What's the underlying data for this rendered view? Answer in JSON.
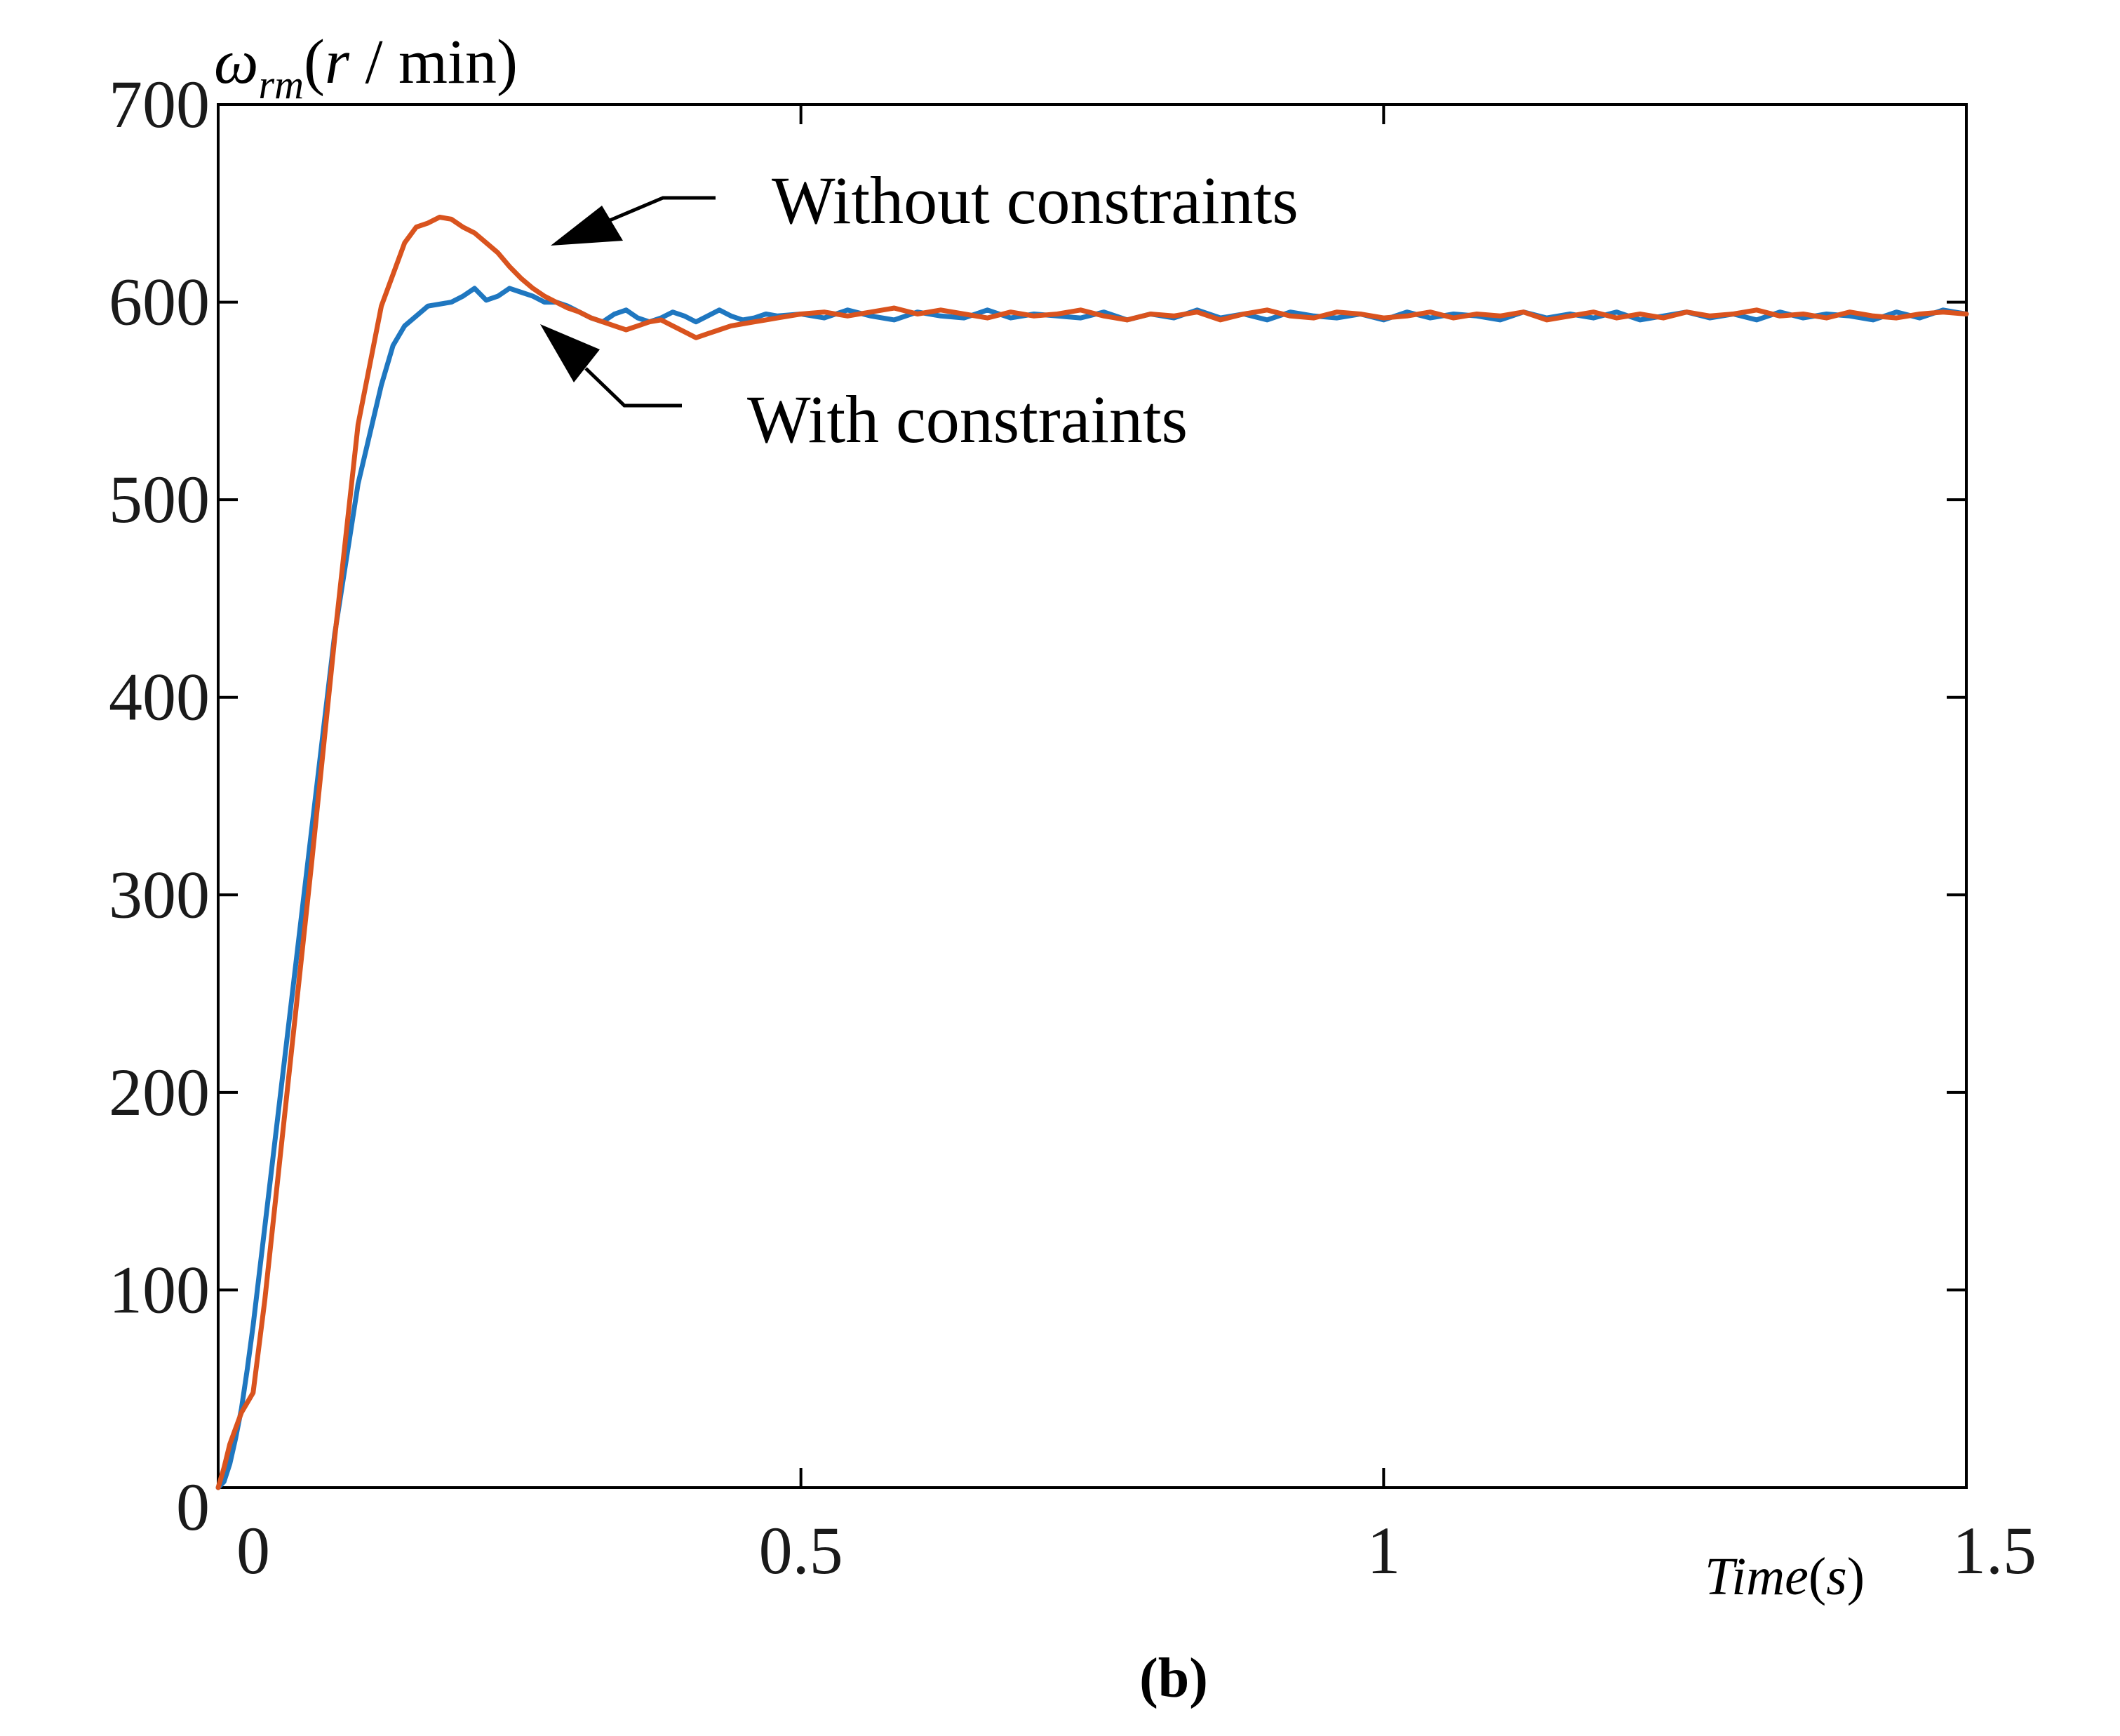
{
  "chart_data": {
    "type": "line",
    "panel_label": "(b)",
    "ylabel": {
      "symbol": "ω",
      "subscript": "rm",
      "open": "(",
      "var": "r",
      "unit": " / min)"
    },
    "xlabel": {
      "var": "Time",
      "open": "(",
      "unit": "s",
      "close": ")"
    },
    "xlim": [
      0,
      1.5
    ],
    "ylim": [
      0,
      700
    ],
    "xticks": [
      {
        "value": 0,
        "label": "0"
      },
      {
        "value": 0.5,
        "label": "0.5"
      },
      {
        "value": 1,
        "label": "1"
      },
      {
        "value": 1.5,
        "label": "1.5"
      }
    ],
    "yticks": [
      {
        "value": 0,
        "label": "0"
      },
      {
        "value": 100,
        "label": "100"
      },
      {
        "value": 200,
        "label": "200"
      },
      {
        "value": 300,
        "label": "300"
      },
      {
        "value": 400,
        "label": "400"
      },
      {
        "value": 500,
        "label": "500"
      },
      {
        "value": 600,
        "label": "600"
      },
      {
        "value": 700,
        "label": "700"
      }
    ],
    "grid": false,
    "series": [
      {
        "name": "With constraints",
        "color": "#1f77c0",
        "x": [
          0,
          0.005,
          0.01,
          0.015,
          0.02,
          0.025,
          0.03,
          0.04,
          0.05,
          0.06,
          0.08,
          0.1,
          0.12,
          0.14,
          0.15,
          0.16,
          0.18,
          0.2,
          0.21,
          0.22,
          0.23,
          0.24,
          0.25,
          0.26,
          0.27,
          0.28,
          0.29,
          0.3,
          0.31,
          0.32,
          0.33,
          0.34,
          0.35,
          0.36,
          0.37,
          0.38,
          0.39,
          0.4,
          0.41,
          0.42,
          0.43,
          0.44,
          0.45,
          0.46,
          0.47,
          0.48,
          0.5,
          0.52,
          0.54,
          0.56,
          0.58,
          0.6,
          0.62,
          0.64,
          0.66,
          0.68,
          0.7,
          0.72,
          0.74,
          0.76,
          0.78,
          0.8,
          0.82,
          0.84,
          0.86,
          0.88,
          0.9,
          0.92,
          0.94,
          0.96,
          0.98,
          1.0,
          1.02,
          1.04,
          1.06,
          1.08,
          1.1,
          1.12,
          1.14,
          1.16,
          1.18,
          1.2,
          1.22,
          1.24,
          1.26,
          1.28,
          1.3,
          1.32,
          1.34,
          1.36,
          1.38,
          1.4,
          1.42,
          1.44,
          1.46,
          1.48,
          1.5
        ],
        "values": [
          0,
          3,
          12,
          25,
          40,
          60,
          82,
          132,
          182,
          232,
          332,
          432,
          508,
          558,
          578,
          588,
          598,
          600,
          603,
          607,
          601,
          603,
          607,
          605,
          603,
          600,
          600,
          598,
          595,
          592,
          590,
          594,
          596,
          592,
          590,
          592,
          595,
          593,
          590,
          593,
          596,
          593,
          591,
          592,
          594,
          593,
          594,
          592,
          596,
          593,
          591,
          595,
          593,
          592,
          596,
          592,
          594,
          593,
          592,
          595,
          591,
          594,
          592,
          596,
          592,
          594,
          591,
          595,
          593,
          592,
          594,
          591,
          595,
          592,
          594,
          593,
          591,
          595,
          592,
          594,
          592,
          595,
          591,
          593,
          595,
          592,
          594,
          591,
          595,
          592,
          594,
          593,
          591,
          595,
          592,
          596,
          594
        ]
      },
      {
        "name": "Without constraints",
        "color": "#d9531e",
        "x": [
          0,
          0.005,
          0.01,
          0.015,
          0.02,
          0.03,
          0.04,
          0.05,
          0.06,
          0.08,
          0.1,
          0.12,
          0.14,
          0.16,
          0.17,
          0.18,
          0.19,
          0.2,
          0.21,
          0.22,
          0.23,
          0.24,
          0.25,
          0.26,
          0.27,
          0.28,
          0.29,
          0.3,
          0.31,
          0.32,
          0.33,
          0.34,
          0.35,
          0.36,
          0.37,
          0.38,
          0.39,
          0.4,
          0.41,
          0.42,
          0.43,
          0.44,
          0.45,
          0.46,
          0.47,
          0.48,
          0.5,
          0.52,
          0.54,
          0.56,
          0.58,
          0.6,
          0.62,
          0.64,
          0.66,
          0.68,
          0.7,
          0.72,
          0.74,
          0.76,
          0.78,
          0.8,
          0.82,
          0.84,
          0.86,
          0.88,
          0.9,
          0.92,
          0.94,
          0.96,
          0.98,
          1.0,
          1.02,
          1.04,
          1.06,
          1.08,
          1.1,
          1.12,
          1.14,
          1.16,
          1.18,
          1.2,
          1.22,
          1.24,
          1.26,
          1.28,
          1.3,
          1.32,
          1.34,
          1.36,
          1.38,
          1.4,
          1.42,
          1.44,
          1.46,
          1.48,
          1.5
        ],
        "values": [
          0,
          10,
          22,
          30,
          38,
          48,
          95,
          150,
          205,
          315,
          430,
          538,
          598,
          630,
          638,
          640,
          643,
          642,
          638,
          635,
          630,
          625,
          618,
          612,
          607,
          603,
          600,
          597,
          595,
          592,
          590,
          588,
          586,
          588,
          590,
          591,
          588,
          585,
          582,
          584,
          586,
          588,
          589,
          590,
          591,
          592,
          594,
          595,
          593,
          595,
          597,
          594,
          596,
          594,
          592,
          595,
          593,
          594,
          596,
          593,
          591,
          594,
          593,
          595,
          591,
          594,
          596,
          593,
          592,
          595,
          594,
          592,
          593,
          595,
          592,
          594,
          593,
          595,
          591,
          593,
          595,
          592,
          594,
          592,
          595,
          593,
          594,
          596,
          593,
          594,
          592,
          595,
          593,
          592,
          594,
          595,
          594
        ]
      }
    ],
    "annotations": [
      {
        "text": "Without constraints",
        "series": "Without constraints"
      },
      {
        "text": "With constraints",
        "series": "With constraints"
      }
    ]
  }
}
